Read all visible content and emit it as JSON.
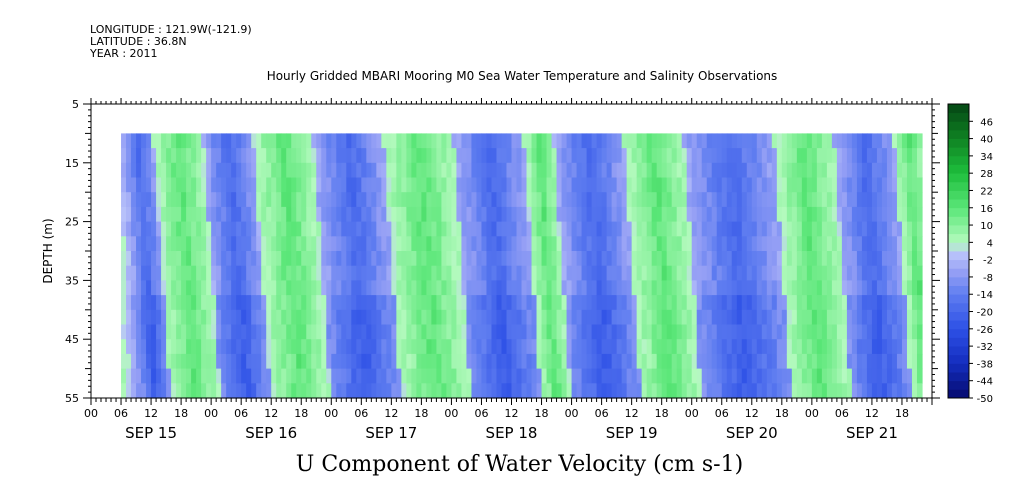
{
  "meta": {
    "longitude": "LONGITUDE : 121.9W(-121.9)",
    "latitude": "LATITUDE : 36.8N",
    "year": "YEAR : 2011"
  },
  "chart_data": {
    "type": "heatmap",
    "title": "Hourly Gridded MBARI Mooring M0 Sea Water Temperature and Salinity Observations",
    "xlabel": "U Component of Water Velocity (cm s-1)",
    "ylabel": "DEPTH (m)",
    "y_ticks": [
      5,
      15,
      25,
      35,
      45,
      55
    ],
    "ylim": [
      5,
      55
    ],
    "depth_range_with_data": [
      10,
      55
    ],
    "x_hour_ticks": [
      "00",
      "06",
      "12",
      "18",
      "00",
      "06",
      "12",
      "18",
      "00",
      "06",
      "12",
      "18",
      "00",
      "06",
      "12",
      "18",
      "00",
      "06",
      "12",
      "18",
      "00",
      "06",
      "12",
      "18",
      "00",
      "06",
      "12",
      "18"
    ],
    "x_day_labels": [
      "SEP 15",
      "SEP 16",
      "SEP 17",
      "SEP 18",
      "SEP 19",
      "SEP 20",
      "SEP 21"
    ],
    "time_range_hours": [
      0,
      168
    ],
    "data_start_hour": 6,
    "data_end_hour": 166,
    "colorbar": {
      "labels": [
        46,
        40,
        34,
        28,
        22,
        16,
        10,
        4,
        -2,
        -8,
        -14,
        -20,
        -26,
        -32,
        -38,
        -44,
        -50
      ],
      "range": [
        -50,
        52
      ]
    },
    "dominant_bands": [
      {
        "start_hour": 6,
        "end_hour": 12,
        "sign": "negative"
      },
      {
        "start_hour": 12,
        "end_hour": 22,
        "sign": "positive"
      },
      {
        "start_hour": 22,
        "end_hour": 32,
        "sign": "negative"
      },
      {
        "start_hour": 32,
        "end_hour": 44,
        "sign": "positive"
      },
      {
        "start_hour": 44,
        "end_hour": 58,
        "sign": "negative"
      },
      {
        "start_hour": 58,
        "end_hour": 72,
        "sign": "positive"
      },
      {
        "start_hour": 72,
        "end_hour": 86,
        "sign": "negative"
      },
      {
        "start_hour": 86,
        "end_hour": 92,
        "sign": "positive"
      },
      {
        "start_hour": 92,
        "end_hour": 106,
        "sign": "negative"
      },
      {
        "start_hour": 106,
        "end_hour": 118,
        "sign": "positive"
      },
      {
        "start_hour": 118,
        "end_hour": 136,
        "sign": "negative"
      },
      {
        "start_hour": 136,
        "end_hour": 148,
        "sign": "positive"
      },
      {
        "start_hour": 148,
        "end_hour": 160,
        "sign": "negative"
      },
      {
        "start_hour": 160,
        "end_hour": 166,
        "sign": "positive"
      }
    ]
  }
}
